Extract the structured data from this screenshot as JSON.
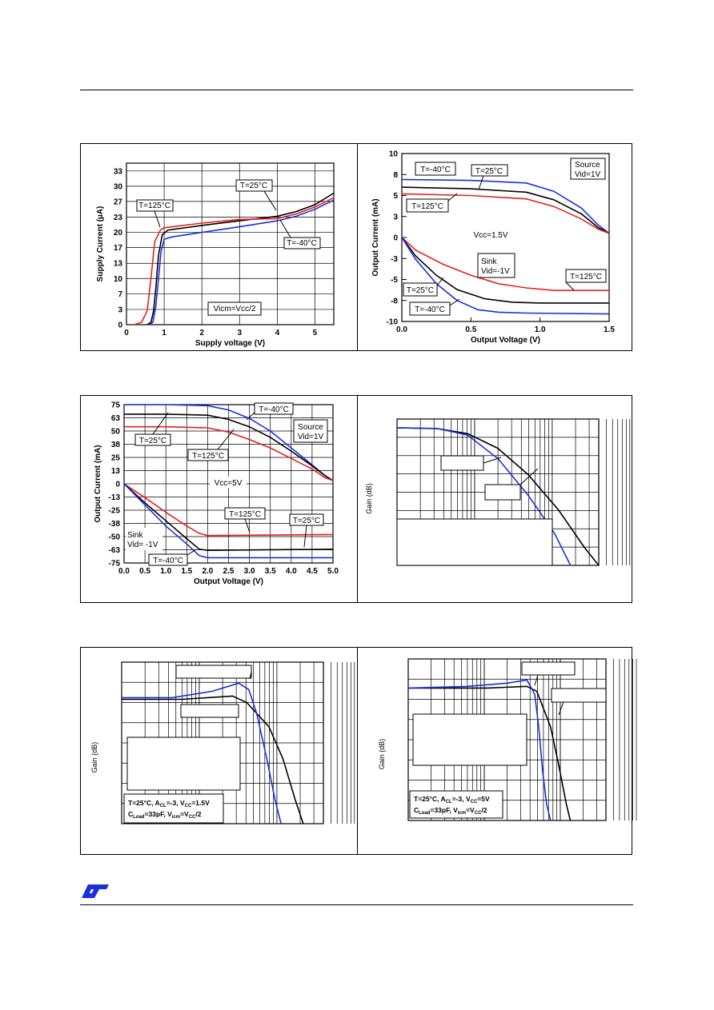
{
  "colors": {
    "black": "#000000",
    "red": "#e8201c",
    "blue": "#1a2fe0"
  },
  "logo": {
    "name": "ST"
  },
  "fig1": {
    "chart_data": {
      "type": "line",
      "xlabel": "Supply voltage (V)",
      "ylabel": "Supply Current (µA)",
      "xlim": [
        0,
        5.5
      ],
      "ylim": [
        0,
        35
      ],
      "x_ticks": [
        "0",
        "1",
        "2",
        "3",
        "4",
        "5"
      ],
      "y_ticks": [
        "0",
        "3",
        "7",
        "10",
        "13",
        "17",
        "20",
        "23",
        "27",
        "30",
        "33"
      ],
      "series": [
        {
          "name": "T=25°C",
          "color": "#000000",
          "points": [
            [
              0.55,
              0
            ],
            [
              0.65,
              0.5
            ],
            [
              0.72,
              3
            ],
            [
              0.78,
              8
            ],
            [
              0.85,
              15
            ],
            [
              0.95,
              19.5
            ],
            [
              1.1,
              20.5
            ],
            [
              2,
              21.5
            ],
            [
              3,
              22.5
            ],
            [
              4,
              23.5
            ],
            [
              4.5,
              24.5
            ],
            [
              5,
              26
            ],
            [
              5.5,
              28.5
            ]
          ]
        },
        {
          "name": "T=125°C",
          "color": "#e8201c",
          "points": [
            [
              0.2,
              0
            ],
            [
              0.4,
              0.5
            ],
            [
              0.55,
              3
            ],
            [
              0.65,
              10
            ],
            [
              0.75,
              18
            ],
            [
              0.9,
              20.5
            ],
            [
              1,
              21
            ],
            [
              2,
              22
            ],
            [
              3,
              22.8
            ],
            [
              4,
              23
            ],
            [
              4.5,
              24
            ],
            [
              5,
              25.5
            ],
            [
              5.5,
              27.5
            ]
          ]
        },
        {
          "name": "T=-40°C",
          "color": "#1a2fe0",
          "points": [
            [
              0.6,
              0
            ],
            [
              0.7,
              0.5
            ],
            [
              0.78,
              4
            ],
            [
              0.85,
              10
            ],
            [
              0.92,
              16
            ],
            [
              1,
              18.5
            ],
            [
              1.2,
              19
            ],
            [
              2,
              20
            ],
            [
              3,
              21.2
            ],
            [
              4,
              22.5
            ],
            [
              4.5,
              23.5
            ],
            [
              5,
              25
            ],
            [
              5.5,
              27
            ]
          ]
        }
      ],
      "annotations": [
        "T=25°C",
        "T=125°C",
        "T=-40°C",
        "Vicm=Vcc/2"
      ]
    }
  },
  "fig2": {
    "chart_data": {
      "type": "line",
      "xlabel": "Output Voltage (V)",
      "ylabel": "Output Current (mA)",
      "xlim": [
        0,
        1.5
      ],
      "ylim": [
        -10,
        10
      ],
      "x_ticks": [
        "0.0",
        "0.5",
        "1.0",
        "1.5"
      ],
      "y_ticks": [
        "10",
        "8",
        "5",
        "3",
        "0",
        "-3",
        "-5",
        "-8",
        "-10"
      ],
      "series": [
        {
          "name": "T=-40°C source",
          "color": "#1a2fe0",
          "points": [
            [
              0,
              6.9
            ],
            [
              0.5,
              6.8
            ],
            [
              0.9,
              6.5
            ],
            [
              1.1,
              5.5
            ],
            [
              1.3,
              3.5
            ],
            [
              1.42,
              1.5
            ],
            [
              1.5,
              0.5
            ]
          ]
        },
        {
          "name": "T=25°C source",
          "color": "#000000",
          "points": [
            [
              0,
              6.0
            ],
            [
              0.5,
              5.8
            ],
            [
              0.9,
              5.4
            ],
            [
              1.1,
              4.5
            ],
            [
              1.3,
              2.8
            ],
            [
              1.42,
              1.2
            ],
            [
              1.5,
              0.5
            ]
          ]
        },
        {
          "name": "T=125°C source",
          "color": "#e8201c",
          "points": [
            [
              0,
              5.2
            ],
            [
              0.5,
              5.0
            ],
            [
              0.9,
              4.6
            ],
            [
              1.1,
              3.7
            ],
            [
              1.3,
              2.2
            ],
            [
              1.42,
              1.0
            ],
            [
              1.5,
              0.5
            ]
          ]
        },
        {
          "name": "T=125°C sink",
          "color": "#e8201c",
          "points": [
            [
              0,
              0
            ],
            [
              0.1,
              -1.5
            ],
            [
              0.3,
              -3.2
            ],
            [
              0.5,
              -4.5
            ],
            [
              0.7,
              -5.5
            ],
            [
              0.9,
              -6.0
            ],
            [
              1.1,
              -6.3
            ],
            [
              1.5,
              -6.3
            ]
          ]
        },
        {
          "name": "T=25°C sink",
          "color": "#000000",
          "points": [
            [
              0,
              0
            ],
            [
              0.1,
              -2.2
            ],
            [
              0.25,
              -4.5
            ],
            [
              0.4,
              -6.2
            ],
            [
              0.6,
              -7.3
            ],
            [
              0.8,
              -7.7
            ],
            [
              1.0,
              -7.8
            ],
            [
              1.5,
              -7.8
            ]
          ]
        },
        {
          "name": "T=-40°C sink",
          "color": "#1a2fe0",
          "points": [
            [
              0,
              0
            ],
            [
              0.1,
              -2.6
            ],
            [
              0.25,
              -5.5
            ],
            [
              0.4,
              -7.5
            ],
            [
              0.55,
              -8.6
            ],
            [
              0.7,
              -8.9
            ],
            [
              0.9,
              -9.0
            ],
            [
              1.5,
              -9.1
            ]
          ]
        }
      ],
      "annotations": [
        "T=-40°C",
        "T=25°C",
        "T=125°C",
        "Source",
        "Vid=1V",
        "Vcc=1.5V",
        "Sink",
        "Vid=-1V",
        "T=125°C",
        "T=25°C",
        "T=-40°C"
      ]
    }
  },
  "fig3": {
    "chart_data": {
      "type": "line",
      "xlabel": "Output Voltage (V)",
      "ylabel": "Output Current (mA)",
      "xlim": [
        0,
        5
      ],
      "ylim": [
        -75,
        75
      ],
      "x_ticks": [
        "0.0",
        "0.5",
        "1.0",
        "1.5",
        "2.0",
        "2.5",
        "3.0",
        "3.5",
        "4.0",
        "4.5",
        "5.0"
      ],
      "y_ticks": [
        "75",
        "63",
        "50",
        "38",
        "25",
        "13",
        "0",
        "-13",
        "-25",
        "-38",
        "-50",
        "-63",
        "-75"
      ],
      "series": [
        {
          "name": "T=-40°C source",
          "color": "#1a2fe0",
          "points": [
            [
              0,
              75
            ],
            [
              1,
              75
            ],
            [
              2,
              74
            ],
            [
              2.5,
              70
            ],
            [
              3,
              62
            ],
            [
              3.5,
              50
            ],
            [
              4,
              34
            ],
            [
              4.5,
              18
            ],
            [
              4.8,
              8
            ],
            [
              5,
              3
            ]
          ]
        },
        {
          "name": "T=25°C source",
          "color": "#000000",
          "points": [
            [
              0,
              66
            ],
            [
              1,
              66
            ],
            [
              2,
              65
            ],
            [
              2.5,
              61
            ],
            [
              3,
              54
            ],
            [
              3.5,
              44
            ],
            [
              4,
              31
            ],
            [
              4.5,
              17
            ],
            [
              4.8,
              8
            ],
            [
              5,
              3
            ]
          ]
        },
        {
          "name": "T=125°C source",
          "color": "#e8201c",
          "points": [
            [
              0,
              54
            ],
            [
              1,
              54
            ],
            [
              2,
              53
            ],
            [
              2.5,
              49
            ],
            [
              3,
              42
            ],
            [
              3.5,
              34
            ],
            [
              4,
              24
            ],
            [
              4.5,
              14
            ],
            [
              4.8,
              6
            ],
            [
              5,
              3
            ]
          ]
        },
        {
          "name": "T=125°C sink",
          "color": "#e8201c",
          "points": [
            [
              0,
              0
            ],
            [
              0.5,
              -13
            ],
            [
              1,
              -27
            ],
            [
              1.5,
              -40
            ],
            [
              1.8,
              -47
            ],
            [
              2,
              -49
            ],
            [
              5,
              -48
            ]
          ]
        },
        {
          "name": "T=25°C sink",
          "color": "#000000",
          "points": [
            [
              0,
              0
            ],
            [
              0.5,
              -18
            ],
            [
              1,
              -35
            ],
            [
              1.5,
              -52
            ],
            [
              1.8,
              -62
            ],
            [
              2,
              -63
            ],
            [
              5,
              -62
            ]
          ]
        },
        {
          "name": "T=-40°C sink",
          "color": "#1a2fe0",
          "points": [
            [
              0,
              0
            ],
            [
              0.5,
              -20
            ],
            [
              1,
              -40
            ],
            [
              1.5,
              -57
            ],
            [
              1.8,
              -68
            ],
            [
              2,
              -70
            ],
            [
              5,
              -70
            ]
          ]
        }
      ],
      "annotations": [
        "T=-40°C",
        "Source",
        "Vid=1V",
        "T=25°C",
        "T=125°C",
        "Vcc=5V",
        "T=125°C",
        "T=25°C",
        "Sink",
        "Vid= -1V",
        "T=-40°C"
      ]
    }
  },
  "fig4": {
    "chart_data": {
      "type": "line",
      "ylabel": "Gain (dB)",
      "x_scale": "log",
      "series": [
        {
          "color": "#000000",
          "points": [
            [
              0,
              0.06
            ],
            [
              0.2,
              0.065
            ],
            [
              0.35,
              0.1
            ],
            [
              0.5,
              0.2
            ],
            [
              0.65,
              0.38
            ],
            [
              0.8,
              0.62
            ],
            [
              0.93,
              0.88
            ],
            [
              1.0,
              1.0
            ]
          ]
        },
        {
          "color": "#1a2fe0",
          "points": [
            [
              0,
              0.06
            ],
            [
              0.2,
              0.065
            ],
            [
              0.35,
              0.11
            ],
            [
              0.5,
              0.27
            ],
            [
              0.65,
              0.52
            ],
            [
              0.78,
              0.78
            ],
            [
              0.86,
              1.0
            ]
          ]
        }
      ]
    }
  },
  "fig5": {
    "chart_data": {
      "type": "line",
      "ylabel": "Gain (dB)",
      "x_scale": "log",
      "series": [
        {
          "color": "#000000",
          "points": [
            [
              0,
              0.23
            ],
            [
              0.3,
              0.23
            ],
            [
              0.55,
              0.21
            ],
            [
              0.62,
              0.25
            ],
            [
              0.73,
              0.4
            ],
            [
              0.8,
              0.6
            ],
            [
              0.86,
              0.85
            ],
            [
              0.9,
              1.0
            ]
          ]
        },
        {
          "color": "#1a2fe0",
          "points": [
            [
              0,
              0.22
            ],
            [
              0.25,
              0.22
            ],
            [
              0.45,
              0.18
            ],
            [
              0.58,
              0.13
            ],
            [
              0.63,
              0.17
            ],
            [
              0.67,
              0.32
            ],
            [
              0.72,
              0.6
            ],
            [
              0.76,
              0.85
            ],
            [
              0.79,
              1.0
            ]
          ]
        }
      ],
      "annotations": [
        "T=25°C, A",
        "CL",
        "=-3, V",
        "CC",
        "=1.5V",
        "C",
        "Load",
        "=33pF, V",
        "icm",
        "=V",
        "CC",
        "/2"
      ]
    }
  },
  "fig6": {
    "chart_data": {
      "type": "line",
      "ylabel": "Gain (dB)",
      "x_scale": "log",
      "series": [
        {
          "color": "#000000",
          "points": [
            [
              0,
              0.18
            ],
            [
              0.4,
              0.18
            ],
            [
              0.6,
              0.17
            ],
            [
              0.65,
              0.2
            ],
            [
              0.72,
              0.42
            ],
            [
              0.76,
              0.65
            ],
            [
              0.8,
              0.9
            ],
            [
              0.82,
              1.0
            ]
          ]
        },
        {
          "color": "#1a2fe0",
          "points": [
            [
              0,
              0.18
            ],
            [
              0.3,
              0.17
            ],
            [
              0.5,
              0.15
            ],
            [
              0.6,
              0.13
            ],
            [
              0.64,
              0.22
            ],
            [
              0.66,
              0.42
            ],
            [
              0.68,
              0.7
            ],
            [
              0.7,
              0.9
            ],
            [
              0.72,
              1.0
            ]
          ]
        }
      ],
      "annotations": [
        "T=25°C, A",
        "CL",
        "=-3, V",
        "CC",
        "=5V",
        "C",
        "Load",
        "=33pF, V",
        "icm",
        "=V",
        "CC",
        "/2"
      ]
    }
  }
}
